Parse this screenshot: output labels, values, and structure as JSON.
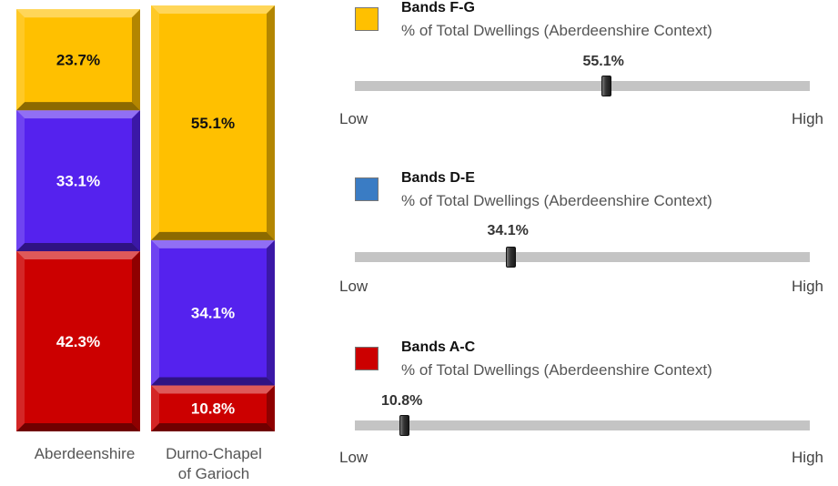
{
  "chart_data": {
    "type": "bar",
    "stacked": true,
    "categories": [
      "Aberdeenshire",
      "Durno-Chapel of Garioch"
    ],
    "series": [
      {
        "name": "Bands A-C",
        "values": [
          42.3,
          10.8
        ],
        "color": "#cc0000"
      },
      {
        "name": "Bands D-E",
        "values": [
          33.1,
          34.1
        ],
        "color": "#5522ee"
      },
      {
        "name": "Bands F-G",
        "values": [
          23.7,
          55.1
        ],
        "color": "#ffc000"
      }
    ],
    "label_format": "{v}%",
    "ylim": [
      0,
      100
    ],
    "title": "",
    "xlabel": "",
    "ylabel": ""
  },
  "categories": {
    "aberdeenshire": "Aberdeenshire",
    "durno_line1": "Durno-Chapel",
    "durno_line2": "of Garioch"
  },
  "indicators": [
    {
      "title": "Bands F-G",
      "subtitle": "% of Total Dwellings (Aberdeenshire Context)",
      "value": 55.1,
      "value_label": "55.1%",
      "low": "Low",
      "high": "High",
      "swatch_color": "#ffc000"
    },
    {
      "title": "Bands D-E",
      "subtitle": "% of Total Dwellings (Aberdeenshire Context)",
      "value": 34.1,
      "value_label": "34.1%",
      "low": "Low",
      "high": "High",
      "swatch_color": "#3a7cc4"
    },
    {
      "title": "Bands A-C",
      "subtitle": "% of Total Dwellings (Aberdeenshire Context)",
      "value": 10.8,
      "value_label": "10.8%",
      "low": "Low",
      "high": "High",
      "swatch_color": "#cc0000"
    }
  ]
}
